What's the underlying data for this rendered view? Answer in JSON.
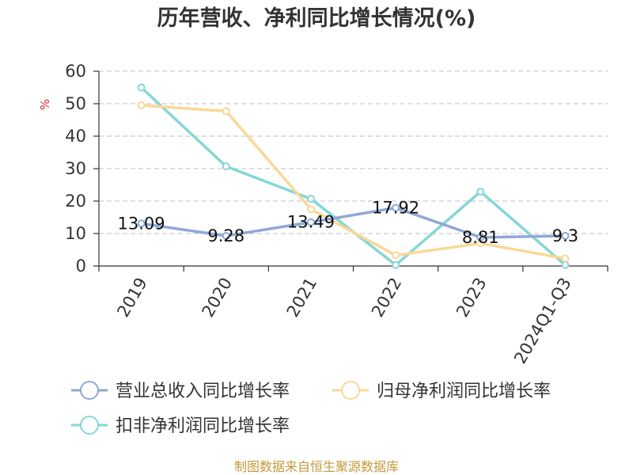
{
  "chart_data": {
    "type": "line",
    "title": "历年营收、净利同比增长情况(%)",
    "ylabel": "%",
    "ylim": [
      0,
      60
    ],
    "yticks": [
      0,
      10,
      20,
      30,
      40,
      50,
      60
    ],
    "grid": true,
    "legend_position": "bottom",
    "categories": [
      "2019",
      "2020",
      "2021",
      "2022",
      "2023",
      "2024Q1-Q3"
    ],
    "series": [
      {
        "name": "营业总收入同比增长率",
        "color": "#8fa8d6",
        "values": [
          13.09,
          9.28,
          13.49,
          17.92,
          8.81,
          9.3
        ],
        "labels": [
          "13.09",
          "9.28",
          "13.49",
          "17.92",
          "8.81",
          "9.3"
        ]
      },
      {
        "name": "归母净利润同比增长率",
        "color": "#f9d898",
        "values": [
          49.5,
          47.7,
          17.5,
          3.3,
          7.0,
          2.3
        ]
      },
      {
        "name": "扣非净利润同比增长率",
        "color": "#86d6d6",
        "values": [
          55,
          30.7,
          20.7,
          0.3,
          22.9,
          0.3
        ]
      }
    ],
    "source": "制图数据来自恒生聚源数据库"
  },
  "colors": {
    "axis": "#333333",
    "grid": "#cccccc",
    "unit": "#e0262b",
    "source": "#c39a3a"
  }
}
